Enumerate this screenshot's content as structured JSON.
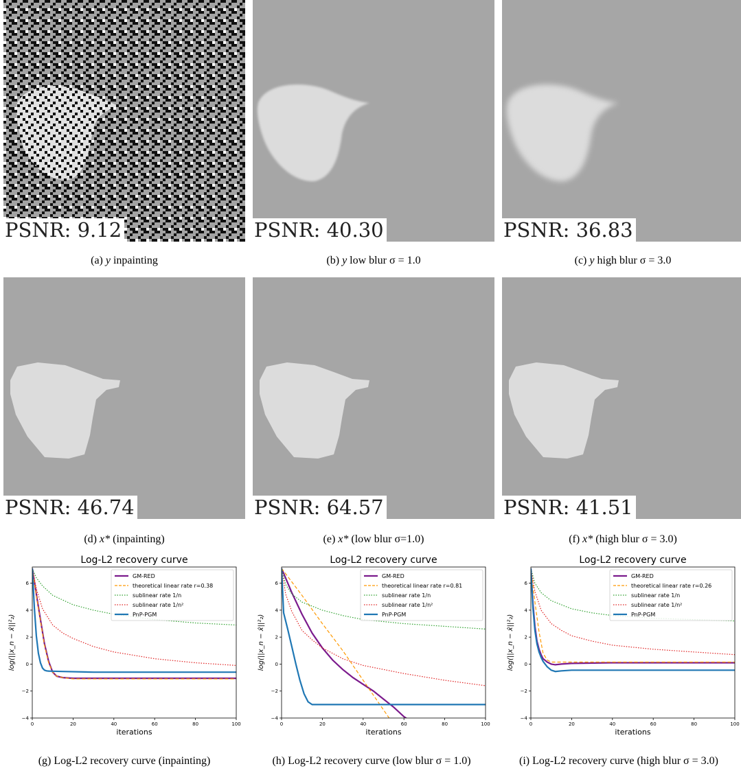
{
  "images": [
    {
      "id": "a",
      "psnr": "PSNR: 9.12",
      "caption": {
        "label": "(a)",
        "var": "y",
        "rest": "inpainting"
      }
    },
    {
      "id": "b",
      "psnr": "PSNR: 40.30",
      "caption": {
        "label": "(b)",
        "var": "y",
        "rest": "low blur σ = 1.0"
      }
    },
    {
      "id": "c",
      "psnr": "PSNR: 36.83",
      "caption": {
        "label": "(c)",
        "var": "y",
        "rest": "high blur σ = 3.0"
      }
    },
    {
      "id": "d",
      "psnr": "PSNR: 46.74",
      "caption": {
        "label": "(d)",
        "var": "x*",
        "rest": "(inpainting)"
      }
    },
    {
      "id": "e",
      "psnr": "PSNR: 64.57",
      "caption": {
        "label": "(e)",
        "var": "x*",
        "rest": "(low blur σ=1.0)"
      }
    },
    {
      "id": "f",
      "psnr": "PSNR: 41.51",
      "caption": {
        "label": "(f)",
        "var": "x*",
        "rest": "(high blur σ = 3.0)"
      }
    }
  ],
  "plot_captions": [
    "(g) Log-L2 recovery curve (inpainting)",
    "(h) Log-L2 recovery curve (low blur σ = 1.0)",
    "(i) Log-L2 recovery curve (high blur σ = 3.0)"
  ],
  "chart_data": [
    {
      "type": "line",
      "title": "Log-L2 recovery curve",
      "xlabel": "iterations",
      "ylabel": "log(||x_n − x̂||²₂)",
      "xlim": [
        0,
        100
      ],
      "ylim": [
        -4,
        7.2
      ],
      "xticks": [
        0,
        20,
        40,
        60,
        80,
        100
      ],
      "yticks": [
        -4,
        -2,
        0,
        2,
        4,
        6
      ],
      "legend": "top-right",
      "series": [
        {
          "name": "GM-RED",
          "color": "#7b1a8c",
          "style": "solid",
          "x": [
            0,
            2,
            4,
            6,
            8,
            10,
            12,
            15,
            20,
            30,
            50,
            100
          ],
          "y": [
            7.1,
            5.2,
            3.3,
            1.5,
            0.2,
            -0.6,
            -0.9,
            -1.0,
            -1.05,
            -1.05,
            -1.05,
            -1.05
          ]
        },
        {
          "name": "theoretical linear rate r=0.38",
          "color": "#ff9900",
          "style": "dashed",
          "x": [
            0,
            2,
            4,
            6,
            8,
            10,
            12,
            15,
            20,
            30,
            50,
            100
          ],
          "y": [
            7.1,
            5.1,
            3.2,
            1.4,
            0.1,
            -0.6,
            -0.9,
            -1.0,
            -1.1,
            -1.1,
            -1.1,
            -1.1
          ]
        },
        {
          "name": "sublinear rate 1/n",
          "color": "#2ca02c",
          "style": "dotted",
          "x": [
            0,
            2,
            5,
            10,
            20,
            30,
            40,
            60,
            80,
            100
          ],
          "y": [
            7.1,
            6.4,
            5.8,
            5.1,
            4.4,
            4.0,
            3.7,
            3.3,
            3.05,
            2.9
          ]
        },
        {
          "name": "sublinear rate 1/n²",
          "color": "#e02020",
          "style": "dotted",
          "x": [
            0,
            2,
            5,
            10,
            15,
            20,
            30,
            40,
            60,
            80,
            100
          ],
          "y": [
            7.1,
            5.6,
            4.1,
            2.9,
            2.3,
            1.9,
            1.3,
            0.9,
            0.4,
            0.1,
            -0.1
          ]
        },
        {
          "name": "PnP-PGM",
          "color": "#1f77b4",
          "style": "solid",
          "x": [
            0,
            1,
            2,
            3,
            4,
            5,
            6,
            7,
            8,
            10,
            15,
            30,
            60,
            100
          ],
          "y": [
            7.1,
            4.2,
            2.1,
            0.8,
            0.1,
            -0.3,
            -0.45,
            -0.5,
            -0.52,
            -0.53,
            -0.55,
            -0.6,
            -0.6,
            -0.6
          ]
        }
      ]
    },
    {
      "type": "line",
      "title": "Log-L2 recovery curve",
      "xlabel": "iterations",
      "ylabel": "log(||x_n − x̂||²₂)",
      "xlim": [
        0,
        100
      ],
      "ylim": [
        -4,
        7.2
      ],
      "xticks": [
        0,
        20,
        40,
        60,
        80,
        100
      ],
      "yticks": [
        -4,
        -2,
        0,
        2,
        4,
        6
      ],
      "legend": "top-right",
      "series": [
        {
          "name": "GM-RED",
          "color": "#7b1a8c",
          "style": "solid",
          "x": [
            0,
            5,
            10,
            15,
            20,
            25,
            30,
            35,
            40,
            45,
            50,
            55,
            60,
            62
          ],
          "y": [
            7.1,
            5.3,
            3.7,
            2.3,
            1.2,
            0.3,
            -0.4,
            -1.0,
            -1.5,
            -2.0,
            -2.6,
            -3.2,
            -3.9,
            -4.1
          ]
        },
        {
          "name": "theoretical linear rate r=0.81",
          "color": "#ff9900",
          "style": "dashed",
          "x": [
            0,
            10,
            20,
            30,
            40,
            50,
            55
          ],
          "y": [
            7.1,
            5.1,
            3.0,
            1.0,
            -1.2,
            -3.4,
            -4.5
          ]
        },
        {
          "name": "sublinear rate 1/n",
          "color": "#2ca02c",
          "style": "dotted",
          "x": [
            0,
            2,
            5,
            10,
            20,
            30,
            40,
            60,
            80,
            100
          ],
          "y": [
            7.1,
            5.9,
            5.2,
            4.6,
            4.0,
            3.6,
            3.3,
            3.0,
            2.8,
            2.6
          ]
        },
        {
          "name": "sublinear rate 1/n²",
          "color": "#e02020",
          "style": "dotted",
          "x": [
            0,
            2,
            5,
            10,
            15,
            20,
            30,
            40,
            60,
            80,
            100
          ],
          "y": [
            7.1,
            5.2,
            3.9,
            2.5,
            1.8,
            1.2,
            0.4,
            -0.1,
            -0.7,
            -1.2,
            -1.6
          ]
        },
        {
          "name": "PnP-PGM",
          "color": "#1f77b4",
          "style": "solid",
          "x": [
            0,
            1,
            3,
            5,
            7,
            9,
            11,
            13,
            15,
            20,
            40,
            60,
            100
          ],
          "y": [
            7.1,
            3.8,
            2.6,
            1.3,
            0.0,
            -1.2,
            -2.2,
            -2.8,
            -3.0,
            -3.0,
            -3.0,
            -3.0,
            -3.0
          ]
        }
      ]
    },
    {
      "type": "line",
      "title": "Log-L2 recovery curve",
      "xlabel": "iterations",
      "ylabel": "log(||x_n − x̂||²₂)",
      "xlim": [
        0,
        100
      ],
      "ylim": [
        -4,
        7.2
      ],
      "xticks": [
        0,
        20,
        40,
        60,
        80,
        100
      ],
      "yticks": [
        -4,
        -2,
        0,
        2,
        4,
        6
      ],
      "legend": "top-right",
      "series": [
        {
          "name": "GM-RED",
          "color": "#7b1a8c",
          "style": "solid",
          "x": [
            0,
            1,
            2,
            3,
            4,
            5,
            6,
            8,
            10,
            12,
            15,
            20,
            40,
            100
          ],
          "y": [
            7.1,
            4.5,
            2.8,
            1.7,
            1.1,
            0.7,
            0.4,
            0.15,
            0.0,
            -0.05,
            0.0,
            0.05,
            0.1,
            0.1
          ]
        },
        {
          "name": "theoretical linear rate r=0.26",
          "color": "#ff9900",
          "style": "dashed",
          "x": [
            0,
            2,
            4,
            6,
            8,
            10,
            15,
            30,
            60,
            100
          ],
          "y": [
            7.1,
            4.6,
            2.4,
            0.8,
            0.3,
            0.15,
            0.15,
            0.15,
            0.15,
            0.15
          ]
        },
        {
          "name": "sublinear rate 1/n",
          "color": "#2ca02c",
          "style": "dotted",
          "x": [
            0,
            2,
            5,
            10,
            20,
            30,
            40,
            60,
            80,
            100
          ],
          "y": [
            7.1,
            6.0,
            5.3,
            4.7,
            4.1,
            3.8,
            3.6,
            3.4,
            3.3,
            3.2
          ]
        },
        {
          "name": "sublinear rate 1/n²",
          "color": "#e02020",
          "style": "dotted",
          "x": [
            0,
            2,
            5,
            10,
            15,
            20,
            30,
            40,
            60,
            80,
            100
          ],
          "y": [
            7.1,
            5.4,
            4.0,
            3.0,
            2.5,
            2.1,
            1.7,
            1.4,
            1.1,
            0.9,
            0.7
          ]
        },
        {
          "name": "PnP-PGM",
          "color": "#1f77b4",
          "style": "solid",
          "x": [
            0,
            1,
            2,
            3,
            4,
            5,
            6,
            8,
            10,
            12,
            15,
            20,
            40,
            100
          ],
          "y": [
            7.1,
            4.2,
            2.5,
            1.5,
            0.9,
            0.5,
            0.2,
            -0.2,
            -0.45,
            -0.55,
            -0.5,
            -0.45,
            -0.45,
            -0.45
          ]
        }
      ]
    }
  ]
}
